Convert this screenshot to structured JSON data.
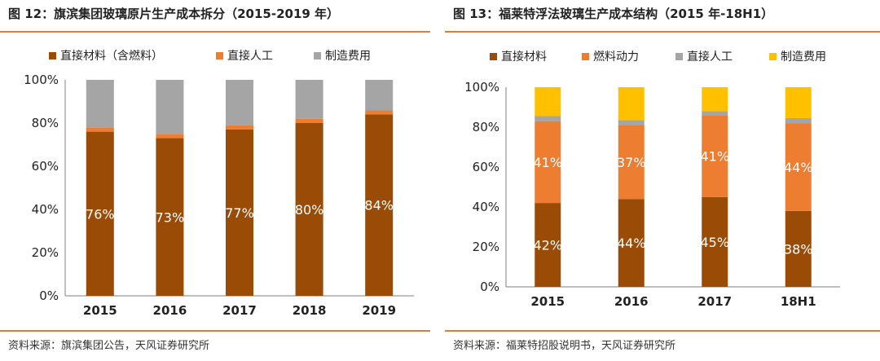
{
  "charts": [
    {
      "figure_title": "图 12：旗滨集团玻璃原片生产成本拆分（2015-2019 年）",
      "source": "资料来源：旗滨集团公告，天风证券研究所",
      "colors": [
        "#9a4b06",
        "#ed7d31",
        "#a5a5a5"
      ],
      "chart_data": {
        "type": "bar",
        "stacked": true,
        "categories": [
          "2015",
          "2016",
          "2017",
          "2018",
          "2019"
        ],
        "series": [
          {
            "name": "直接材料（含燃料）",
            "values": [
              76,
              73,
              77,
              80,
              84
            ],
            "labels": [
              "76%",
              "73%",
              "77%",
              "80%",
              "84%"
            ]
          },
          {
            "name": "直接人工",
            "values": [
              2,
              2,
              2,
              2,
              2
            ]
          },
          {
            "name": "制造费用",
            "values": [
              22,
              25,
              21,
              18,
              14
            ]
          }
        ],
        "yticks": [
          "0%",
          "20%",
          "40%",
          "60%",
          "80%",
          "100%"
        ],
        "ylim": [
          0,
          100
        ],
        "legend": "top"
      }
    },
    {
      "figure_title": "图 13：福莱特浮法玻璃生产成本结构（2015 年-18H1）",
      "source": "资料来源：福莱特招股说明书，天风证券研究所",
      "colors": [
        "#9a4b06",
        "#ed7d31",
        "#a5a5a5",
        "#ffc000"
      ],
      "chart_data": {
        "type": "bar",
        "stacked": true,
        "categories": [
          "2015",
          "2016",
          "2017",
          "18H1"
        ],
        "series": [
          {
            "name": "直接材料",
            "values": [
              42,
              44,
              45,
              38
            ],
            "labels": [
              "42%",
              "44%",
              "45%",
              "38%"
            ]
          },
          {
            "name": "燃料动力",
            "values": [
              41,
              37,
              41,
              44
            ],
            "labels": [
              "41%",
              "37%",
              "41%",
              "44%"
            ]
          },
          {
            "name": "直接人工",
            "values": [
              2.5,
              2.5,
              2,
              2.5
            ]
          },
          {
            "name": "制造费用",
            "values": [
              14.5,
              16.5,
              12,
              15.5
            ]
          }
        ],
        "yticks": [
          "0%",
          "20%",
          "40%",
          "60%",
          "80%",
          "100%"
        ],
        "ylim": [
          0,
          100
        ],
        "legend": "top"
      }
    }
  ]
}
